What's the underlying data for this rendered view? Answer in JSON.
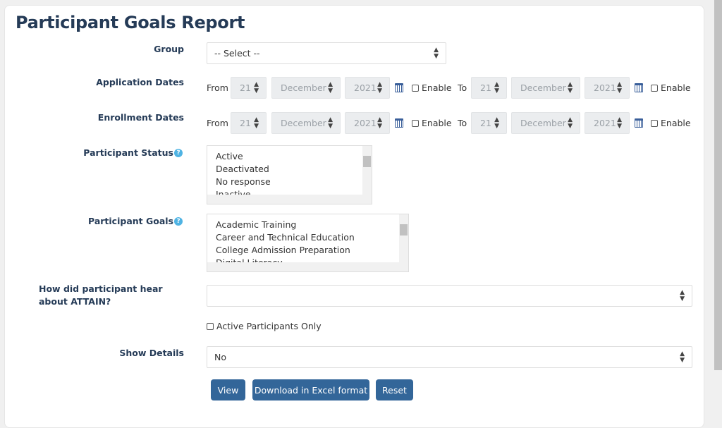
{
  "title": "Participant Goals Report",
  "group": {
    "label": "Group",
    "value": "-- Select --"
  },
  "application_dates": {
    "label": "Application Dates",
    "from": "From",
    "to": "To",
    "day": "21",
    "month": "December",
    "year": "2021",
    "enable": "Enable"
  },
  "enrollment_dates": {
    "label": "Enrollment Dates",
    "from": "From",
    "to": "To",
    "day": "21",
    "month": "December",
    "year": "2021",
    "enable": "Enable"
  },
  "participant_status": {
    "label": "Participant Status",
    "help": "?",
    "options": [
      "Active",
      "Deactivated",
      "No response",
      "Inactive"
    ]
  },
  "participant_goals": {
    "label": "Participant Goals",
    "help": "?",
    "options": [
      "Academic Training",
      "Career and Technical Education",
      "College Admission Preparation",
      "Digital Literacy"
    ]
  },
  "hear_about": {
    "label": "How did participant hear about ATTAIN?",
    "value": ""
  },
  "active_only": {
    "label": "Active Participants Only",
    "checked": false
  },
  "show_details": {
    "label": "Show Details",
    "value": "No"
  },
  "buttons": {
    "view": "View",
    "download": "Download in Excel format",
    "reset": "Reset"
  },
  "colors": {
    "heading": "#253b57",
    "button": "#336699",
    "help": "#4fb3e3"
  }
}
